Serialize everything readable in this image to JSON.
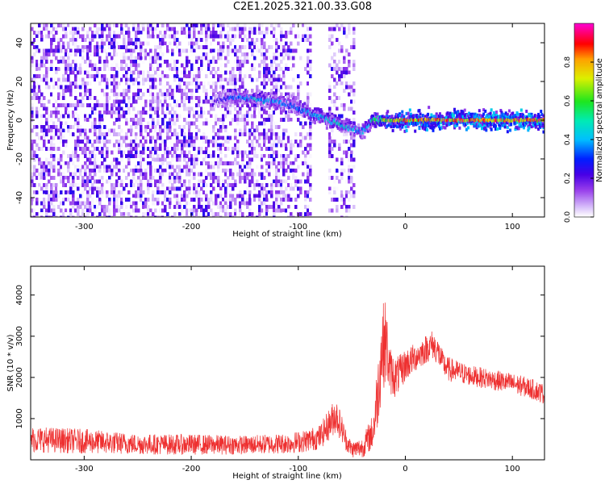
{
  "title": "C2E1.2025.321.00.33.G08",
  "colors": {
    "snr_line": "#ee3030",
    "axes": "#000000",
    "background": "#ffffff"
  },
  "chart_data": [
    {
      "type": "heatmap",
      "xlabel": "Height of straight line (km)",
      "ylabel": "Frequency (Hz)",
      "xlim": [
        -350,
        130
      ],
      "ylim": [
        -50,
        50
      ],
      "xticks": [
        -300,
        -200,
        -100,
        0,
        100
      ],
      "yticks": [
        -40,
        -20,
        0,
        20,
        40
      ],
      "colorbar": {
        "label": "Normalized spectral amplitude",
        "range": [
          0,
          1
        ],
        "ticks": [
          "0.0",
          "0.2",
          "0.4",
          "0.6",
          "0.8"
        ],
        "colormap": "rainbow (white to violet to blue to cyan to green to yellow to red to magenta)"
      },
      "ridge": {
        "description": "signal ridge frequency vs height",
        "x": [
          -178,
          -160,
          -140,
          -125,
          -110,
          -95,
          -80,
          -65,
          -52,
          -40,
          -30,
          -20,
          0,
          50,
          100,
          130
        ],
        "y": [
          10,
          12,
          11,
          10,
          8,
          5,
          2,
          -1,
          -4,
          -6,
          0,
          0,
          0,
          0,
          0,
          0
        ],
        "amplitude": [
          0.2,
          0.35,
          0.45,
          0.4,
          0.35,
          0.4,
          0.45,
          0.5,
          0.45,
          0.4,
          0.55,
          0.7,
          0.85,
          0.9,
          0.88,
          0.9
        ]
      },
      "noise_amplitude": 0.12
    },
    {
      "type": "line",
      "xlabel": "Height of straight line (km)",
      "ylabel": "SNR (10 * v/v)",
      "xlim": [
        -350,
        130
      ],
      "ylim": [
        0,
        4700
      ],
      "xticks": [
        -300,
        -200,
        -100,
        0,
        100
      ],
      "yticks": [
        1000,
        2000,
        3000,
        4000
      ],
      "series": [
        {
          "color": "#ee3030",
          "x": [
            -350,
            -300,
            -250,
            -200,
            -150,
            -110,
            -95,
            -80,
            -70,
            -65,
            -60,
            -55,
            -50,
            -40,
            -30,
            -25,
            -22,
            -18,
            -15,
            -10,
            -5,
            0,
            10,
            20,
            25,
            30,
            35,
            40,
            60,
            80,
            100,
            115,
            130
          ],
          "y": [
            500,
            450,
            380,
            370,
            360,
            400,
            450,
            550,
            900,
            1100,
            800,
            450,
            250,
            300,
            700,
            1800,
            2700,
            2900,
            2200,
            2000,
            2100,
            2300,
            2500,
            2700,
            2800,
            2650,
            2350,
            2200,
            2050,
            1950,
            1850,
            1750,
            1600
          ],
          "noise": [
            320,
            300,
            250,
            250,
            230,
            250,
            270,
            300,
            400,
            450,
            350,
            250,
            200,
            250,
            450,
            900,
            1100,
            1000,
            600,
            500,
            450,
            400,
            350,
            350,
            350,
            350,
            300,
            300,
            250,
            250,
            250,
            250,
            250
          ]
        }
      ]
    }
  ]
}
